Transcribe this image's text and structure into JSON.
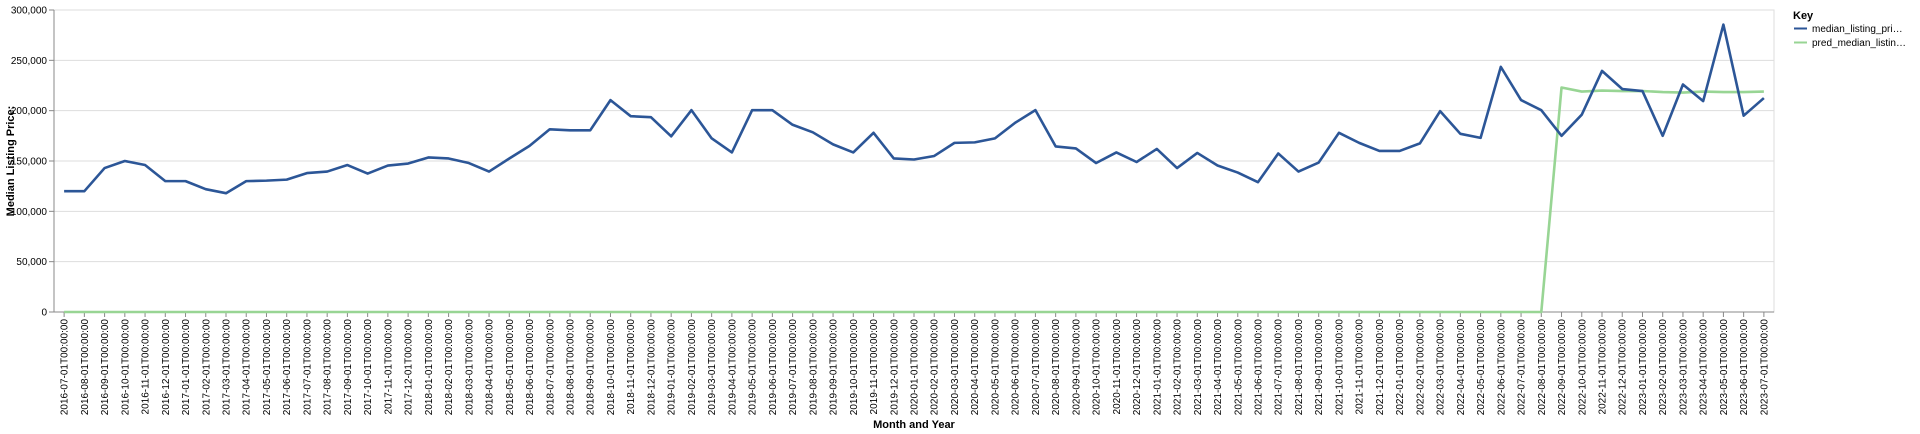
{
  "chart_data": {
    "type": "line",
    "xlabel": "Month and Year",
    "ylabel": "Median Listing Price:",
    "ylim": [
      0,
      300000
    ],
    "yticks": [
      "0",
      "50,000",
      "100,000",
      "150,000",
      "200,000",
      "250,000",
      "300,000"
    ],
    "grid": true,
    "legend": {
      "title": "Key",
      "placement": "right"
    },
    "x": [
      "2016-07-01T00:00:00",
      "2016-08-01T00:00:00",
      "2016-09-01T00:00:00",
      "2016-10-01T00:00:00",
      "2016-11-01T00:00:00",
      "2016-12-01T00:00:00",
      "2017-01-01T00:00:00",
      "2017-02-01T00:00:00",
      "2017-03-01T00:00:00",
      "2017-04-01T00:00:00",
      "2017-05-01T00:00:00",
      "2017-06-01T00:00:00",
      "2017-07-01T00:00:00",
      "2017-08-01T00:00:00",
      "2017-09-01T00:00:00",
      "2017-10-01T00:00:00",
      "2017-11-01T00:00:00",
      "2017-12-01T00:00:00",
      "2018-01-01T00:00:00",
      "2018-02-01T00:00:00",
      "2018-03-01T00:00:00",
      "2018-04-01T00:00:00",
      "2018-05-01T00:00:00",
      "2018-06-01T00:00:00",
      "2018-07-01T00:00:00",
      "2018-08-01T00:00:00",
      "2018-09-01T00:00:00",
      "2018-10-01T00:00:00",
      "2018-11-01T00:00:00",
      "2018-12-01T00:00:00",
      "2019-01-01T00:00:00",
      "2019-02-01T00:00:00",
      "2019-03-01T00:00:00",
      "2019-04-01T00:00:00",
      "2019-05-01T00:00:00",
      "2019-06-01T00:00:00",
      "2019-07-01T00:00:00",
      "2019-08-01T00:00:00",
      "2019-09-01T00:00:00",
      "2019-10-01T00:00:00",
      "2019-11-01T00:00:00",
      "2019-12-01T00:00:00",
      "2020-01-01T00:00:00",
      "2020-02-01T00:00:00",
      "2020-03-01T00:00:00",
      "2020-04-01T00:00:00",
      "2020-05-01T00:00:00",
      "2020-06-01T00:00:00",
      "2020-07-01T00:00:00",
      "2020-08-01T00:00:00",
      "2020-09-01T00:00:00",
      "2020-10-01T00:00:00",
      "2020-11-01T00:00:00",
      "2020-12-01T00:00:00",
      "2021-01-01T00:00:00",
      "2021-02-01T00:00:00",
      "2021-03-01T00:00:00",
      "2021-04-01T00:00:00",
      "2021-05-01T00:00:00",
      "2021-06-01T00:00:00",
      "2021-07-01T00:00:00",
      "2021-08-01T00:00:00",
      "2021-09-01T00:00:00",
      "2021-10-01T00:00:00",
      "2021-11-01T00:00:00",
      "2021-12-01T00:00:00",
      "2022-01-01T00:00:00",
      "2022-02-01T00:00:00",
      "2022-03-01T00:00:00",
      "2022-04-01T00:00:00",
      "2022-05-01T00:00:00",
      "2022-06-01T00:00:00",
      "2022-07-01T00:00:00",
      "2022-08-01T00:00:00",
      "2022-09-01T00:00:00",
      "2022-10-01T00:00:00",
      "2022-11-01T00:00:00",
      "2022-12-01T00:00:00",
      "2023-01-01T00:00:00",
      "2023-02-01T00:00:00",
      "2023-03-01T00:00:00",
      "2023-04-01T00:00:00",
      "2023-05-01T00:00:00",
      "2023-06-01T00:00:00",
      "2023-07-01T00:00:00"
    ],
    "series": [
      {
        "name": "median_listing_pri…",
        "color": "#2c5697",
        "values": [
          120000,
          120000,
          143000,
          150000,
          146000,
          130000,
          130000,
          122000,
          118000,
          130000,
          130500,
          131500,
          138000,
          139500,
          146000,
          137500,
          145500,
          147500,
          153500,
          152500,
          148000,
          139500,
          152500,
          165000,
          181500,
          180500,
          180500,
          210500,
          194500,
          193500,
          174500,
          200500,
          172500,
          158500,
          200500,
          200500,
          186000,
          178500,
          166500,
          158500,
          178000,
          152500,
          151500,
          155000,
          168000,
          168500,
          172500,
          188000,
          200500,
          164500,
          162500,
          148000,
          158500,
          149000,
          162000,
          143000,
          158000,
          145500,
          138500,
          129000,
          157500,
          139500,
          148500,
          178000,
          168000,
          160000,
          160000,
          167500,
          199500,
          177000,
          173000,
          243500,
          210500,
          200500,
          175000,
          196000,
          239500,
          221500,
          219500,
          175000,
          226000,
          209500,
          285500,
          195000,
          212500
        ]
      },
      {
        "name": "pred_median_listin…",
        "color": "#98d594",
        "values": [
          0,
          0,
          0,
          0,
          0,
          0,
          0,
          0,
          0,
          0,
          0,
          0,
          0,
          0,
          0,
          0,
          0,
          0,
          0,
          0,
          0,
          0,
          0,
          0,
          0,
          0,
          0,
          0,
          0,
          0,
          0,
          0,
          0,
          0,
          0,
          0,
          0,
          0,
          0,
          0,
          0,
          0,
          0,
          0,
          0,
          0,
          0,
          0,
          0,
          0,
          0,
          0,
          0,
          0,
          0,
          0,
          0,
          0,
          0,
          0,
          0,
          0,
          0,
          0,
          0,
          0,
          0,
          0,
          0,
          0,
          0,
          0,
          0,
          0,
          223000,
          219000,
          220000,
          219500,
          219500,
          218500,
          218000,
          219000,
          218500,
          218500,
          219000
        ]
      }
    ]
  }
}
